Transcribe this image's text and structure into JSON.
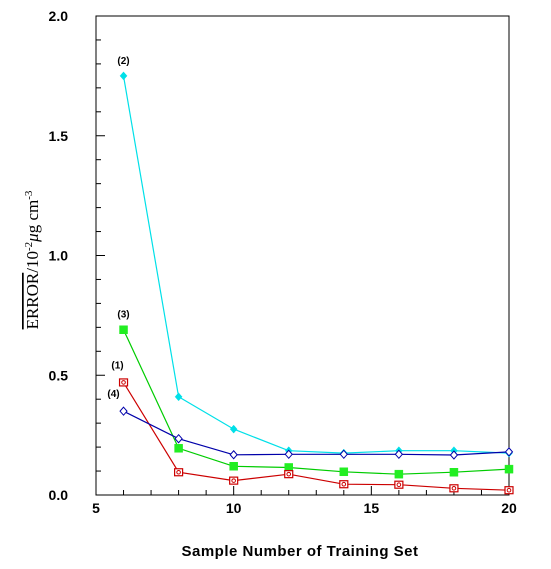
{
  "chart_data": {
    "type": "line",
    "xlabel": "Sample Number of Training Set",
    "ylabel": {
      "main": "ERROR",
      "unit_prefix": "/10",
      "unit_exp": "-2",
      "unit_mu": "μ",
      "unit_g": "g cm",
      "unit_exp2": "-3"
    },
    "xlim": [
      5,
      20
    ],
    "ylim": [
      0.0,
      2.0
    ],
    "xticks": [
      5,
      10,
      15,
      20
    ],
    "yticks": [
      0.0,
      0.5,
      1.0,
      1.5,
      2.0
    ],
    "ytick_labels": [
      "0.0",
      "0.5",
      "1.0",
      "1.5",
      "2.0"
    ],
    "xtick_labels": [
      "5",
      "10",
      "15",
      "20"
    ],
    "x": [
      6,
      8,
      10,
      12,
      14,
      16,
      18,
      20
    ],
    "series": [
      {
        "annotation": "(2)",
        "color": "#00e0e8",
        "marker": "diamond-filled",
        "values": [
          1.75,
          0.41,
          0.275,
          0.185,
          0.175,
          0.185,
          0.185,
          0.175
        ]
      },
      {
        "annotation": "(3)",
        "color": "#00cc00",
        "marker_color": "#22ee22",
        "marker": "square-filled",
        "values": [
          0.69,
          0.195,
          0.12,
          0.115,
          0.097,
          0.087,
          0.095,
          0.108
        ]
      },
      {
        "annotation": "(1)",
        "color": "#cc0000",
        "marker": "square-dot",
        "values": [
          0.47,
          0.095,
          0.06,
          0.087,
          0.045,
          0.043,
          0.028,
          0.02
        ]
      },
      {
        "annotation": "(4)",
        "color": "#0000aa",
        "marker": "diamond-open",
        "values": [
          0.35,
          0.235,
          0.168,
          0.17,
          0.17,
          0.17,
          0.167,
          0.18
        ]
      }
    ]
  }
}
